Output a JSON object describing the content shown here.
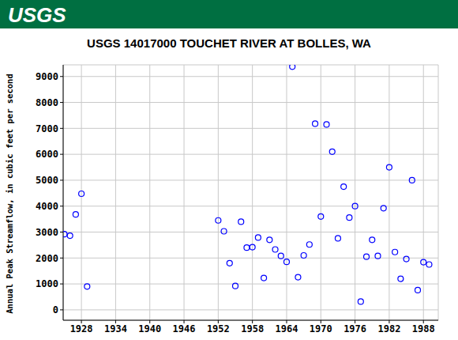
{
  "chart_data": {
    "type": "scatter",
    "logo": "USGS",
    "title": "USGS 14017000 TOUCHET RIVER AT BOLLES, WA",
    "ylabel": "Annual Peak Streamflow, in cubic feet per second",
    "x": [
      1925,
      1926,
      1927,
      1928,
      1929,
      1952,
      1953,
      1954,
      1955,
      1956,
      1957,
      1958,
      1959,
      1960,
      1961,
      1962,
      1963,
      1964,
      1965,
      1966,
      1967,
      1968,
      1969,
      1970,
      1971,
      1972,
      1973,
      1974,
      1975,
      1976,
      1977,
      1978,
      1979,
      1980,
      1981,
      1982,
      1983,
      1984,
      1985,
      1986,
      1987,
      1988,
      1989
    ],
    "values": [
      2920,
      2860,
      3680,
      4480,
      900,
      3450,
      3030,
      1800,
      920,
      3400,
      2400,
      2420,
      2790,
      1230,
      2700,
      2330,
      2080,
      1850,
      9380,
      1260,
      2100,
      2520,
      7180,
      3600,
      7150,
      6100,
      2760,
      4750,
      3560,
      4000,
      320,
      2050,
      2700,
      2080,
      3920,
      5500,
      2230,
      1200,
      1960,
      5000,
      760,
      1840,
      1750
    ],
    "color": "#0000ff",
    "marker": "open_circle",
    "xlim": [
      1924.8,
      1990.6
    ],
    "xticks": [
      1928,
      1934,
      1940,
      1946,
      1952,
      1958,
      1964,
      1970,
      1976,
      1982,
      1988
    ],
    "ylim": [
      -400,
      9450
    ],
    "yticks": [
      0,
      1000,
      2000,
      3000,
      4000,
      5000,
      6000,
      7000,
      8000,
      9000
    ],
    "grid": true
  }
}
